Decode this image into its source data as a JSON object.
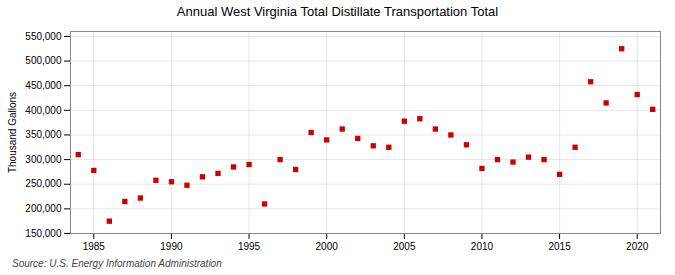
{
  "chart_data": {
    "type": "scatter",
    "title": "Annual West Virginia Total Distillate Transportation Total",
    "ylabel": "Thousand Gallons",
    "annotations": [
      "Source: U.S. Energy Information Administration"
    ],
    "x": [
      1984,
      1985,
      1986,
      1987,
      1988,
      1989,
      1990,
      1991,
      1992,
      1993,
      1994,
      1995,
      1996,
      1997,
      1998,
      1999,
      2000,
      2001,
      2002,
      2003,
      2004,
      2005,
      2006,
      2007,
      2008,
      2009,
      2010,
      2011,
      2012,
      2013,
      2014,
      2015,
      2016,
      2017,
      2018,
      2019,
      2020,
      2021
    ],
    "values": [
      310000,
      278000,
      175000,
      215000,
      222000,
      258000,
      255000,
      248000,
      265000,
      272000,
      285000,
      290000,
      210000,
      300000,
      280000,
      355000,
      340000,
      362000,
      343000,
      328000,
      325000,
      378000,
      383000,
      362000,
      350000,
      330000,
      282000,
      300000,
      295000,
      305000,
      300000,
      270000,
      325000,
      458000,
      415000,
      525000,
      432000,
      402000
    ],
    "color": "#cc0000",
    "marker": "square",
    "xlim": [
      1983.5,
      2021.5
    ],
    "ylim": [
      150000,
      560000
    ],
    "xticks": [
      1985,
      1990,
      1995,
      2000,
      2005,
      2010,
      2015,
      2020
    ],
    "yticks": [
      {
        "value": 150000,
        "label": "150,000"
      },
      {
        "value": 200000,
        "label": "200,000"
      },
      {
        "value": 250000,
        "label": "250,000"
      },
      {
        "value": 300000,
        "label": "300,000"
      },
      {
        "value": 350000,
        "label": "350,000"
      },
      {
        "value": 400000,
        "label": "400,000"
      },
      {
        "value": 450000,
        "label": "450,000"
      },
      {
        "value": 500000,
        "label": "500,000"
      },
      {
        "value": 550000,
        "label": "550,000"
      }
    ],
    "grid": true
  }
}
